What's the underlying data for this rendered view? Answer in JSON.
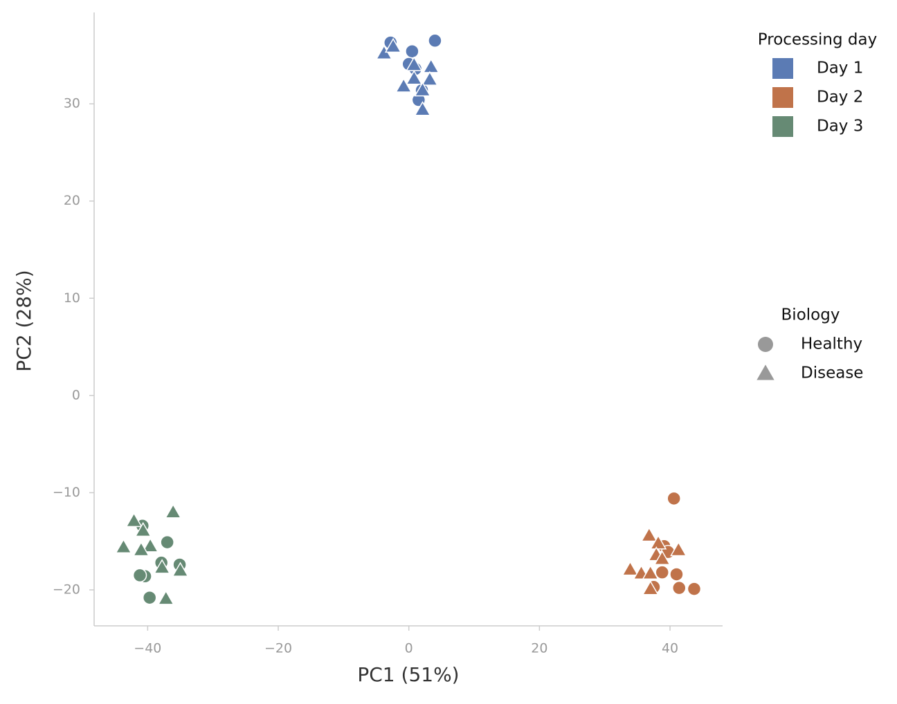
{
  "chart_data": {
    "type": "scatter",
    "xlabel": "PC1 (51%)",
    "ylabel": "PC2 (28%)",
    "xlim": [
      -48.2,
      48.05
    ],
    "ylim": [
      -23.7,
      39.4
    ],
    "xticks": [
      {
        "value": -40,
        "label": "−40"
      },
      {
        "value": -20,
        "label": "−20"
      },
      0,
      20,
      40
    ],
    "yticks": [
      {
        "value": -20,
        "label": "−20"
      },
      {
        "value": -10,
        "label": "−10"
      },
      0,
      10,
      20,
      30
    ],
    "hue_legend": {
      "title": "Processing day",
      "entries": [
        {
          "name": "Day 1",
          "color": "#5b7bb4"
        },
        {
          "name": "Day 2",
          "color": "#c0734a"
        },
        {
          "name": "Day 3",
          "color": "#668a74"
        }
      ]
    },
    "style_legend": {
      "title": "Biology",
      "color": "#999999",
      "entries": [
        {
          "name": "Healthy",
          "marker": "circle"
        },
        {
          "name": "Disease",
          "marker": "triangle"
        }
      ]
    },
    "series": [
      {
        "day": "Day 1",
        "biology": "Healthy",
        "x": [
          -2.8,
          4.0,
          0.5,
          0.0,
          1.0,
          2.0,
          1.5
        ],
        "y": [
          36.3,
          36.5,
          35.4,
          34.1,
          33.6,
          31.4,
          30.4
        ]
      },
      {
        "day": "Day 1",
        "biology": "Disease",
        "x": [
          -3.8,
          -2.4,
          0.8,
          3.4,
          0.8,
          3.2,
          -0.8,
          2.1,
          2.1
        ],
        "y": [
          35.2,
          35.9,
          34.0,
          33.8,
          32.6,
          32.5,
          31.8,
          31.4,
          29.4
        ]
      },
      {
        "day": "Day 2",
        "biology": "Healthy",
        "x": [
          40.6,
          39.1,
          39.7,
          41.0,
          38.8,
          37.5,
          41.4,
          43.7
        ],
        "y": [
          -10.6,
          -15.5,
          -16.1,
          -18.4,
          -18.2,
          -19.7,
          -19.8,
          -19.9
        ]
      },
      {
        "day": "Day 2",
        "biology": "Disease",
        "x": [
          36.8,
          38.2,
          41.3,
          37.9,
          38.8,
          33.9,
          35.6,
          37.0,
          37.0
        ],
        "y": [
          -14.4,
          -15.2,
          -15.9,
          -16.4,
          -16.8,
          -17.9,
          -18.3,
          -18.3,
          -19.9
        ]
      },
      {
        "day": "Day 3",
        "biology": "Healthy",
        "x": [
          -40.8,
          -37.0,
          -37.9,
          -35.1,
          -40.4,
          -41.2,
          -39.7
        ],
        "y": [
          -13.4,
          -15.1,
          -17.2,
          -17.4,
          -18.6,
          -18.5,
          -20.8
        ]
      },
      {
        "day": "Day 3",
        "biology": "Disease",
        "x": [
          -36.1,
          -42.1,
          -40.7,
          -43.7,
          -39.6,
          -41.0,
          -37.8,
          -35.0,
          -37.2
        ],
        "y": [
          -12.0,
          -12.9,
          -13.9,
          -15.6,
          -15.5,
          -15.9,
          -17.7,
          -18.0,
          -20.9
        ]
      }
    ]
  }
}
